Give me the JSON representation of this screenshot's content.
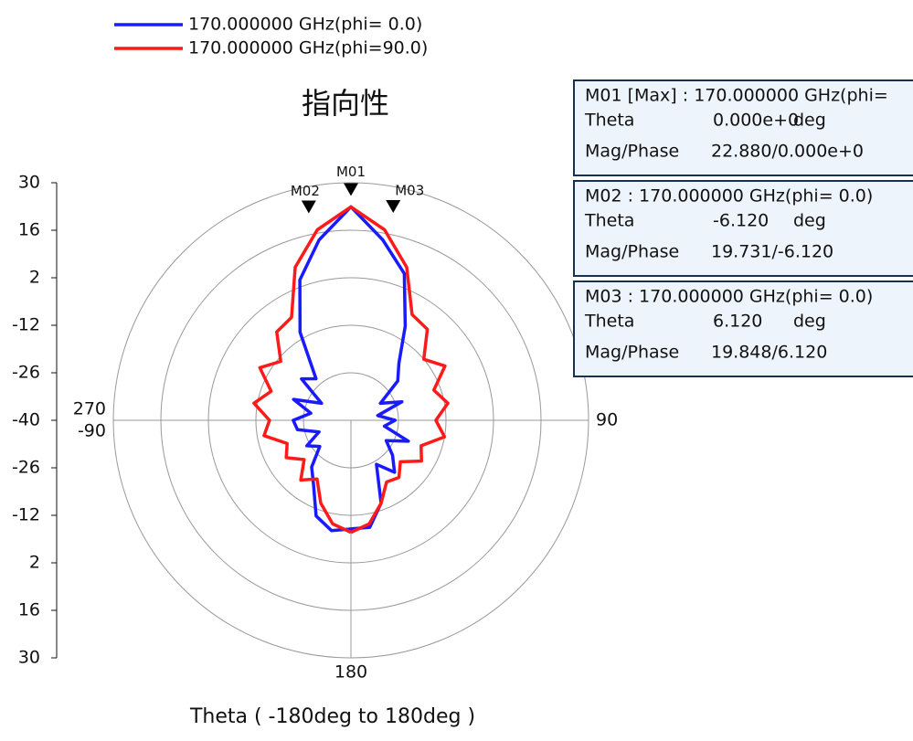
{
  "chart_data": {
    "type": "polar",
    "title": "指向性",
    "x_label": "Theta ( -180deg to 180deg )",
    "rlim": [
      -40,
      30
    ],
    "rticks": [
      -40,
      -26,
      -12,
      2,
      16,
      30
    ],
    "angle_ticks": [
      90,
      180,
      270,
      -90
    ],
    "theta": [
      -180,
      -170,
      -160,
      -150,
      -140,
      -130,
      -120,
      -110,
      -100,
      -90,
      -80,
      -70,
      -60,
      -50,
      -40,
      -30,
      -20,
      -10,
      0,
      10,
      20,
      30,
      40,
      50,
      60,
      70,
      80,
      90,
      100,
      110,
      120,
      130,
      140,
      150,
      160,
      170,
      180
    ],
    "series": [
      {
        "name": "170.000000 GHz(phi= 0.0)",
        "color": "#1a1aff",
        "values": [
          -8,
          -7,
          -10,
          -18,
          -22,
          -28,
          -25,
          -30,
          -24,
          -23,
          -28,
          -22,
          -30,
          -21,
          -24,
          -10,
          4,
          14,
          22.88,
          14,
          6,
          -8,
          -18,
          -22,
          -30,
          -24,
          -32,
          -27,
          -30,
          -22,
          -28,
          -24,
          -20,
          -25,
          -14,
          -8,
          -8
        ]
      },
      {
        "name": "170.000000 GHz(phi=90.0)",
        "color": "#ff1a1a",
        "values": [
          -7,
          -9,
          -14,
          -20,
          -17,
          -22,
          -18,
          -20,
          -14,
          -16,
          -11,
          -15,
          -9,
          -13,
          -6,
          -5,
          8,
          17,
          22.88,
          17,
          8,
          -4,
          -5,
          -12,
          -8,
          -14,
          -11,
          -15,
          -12,
          -18,
          -16,
          -21,
          -18,
          -19,
          -14,
          -9,
          -7
        ]
      }
    ],
    "markers": [
      {
        "name": "M01",
        "theta": 0,
        "value": 22.88,
        "header": "M01 [Max] : 170.000000 GHz(phi=",
        "theta_label": "0.000e+0",
        "mag_phase_label": "22.880/0.000e+0"
      },
      {
        "name": "M02",
        "theta": -6.12,
        "value": 19.731,
        "header": "M02 : 170.000000 GHz(phi= 0.0)",
        "theta_label": "-6.120",
        "mag_phase_label": "19.731/-6.120"
      },
      {
        "name": "M03",
        "theta": 6.12,
        "value": 19.848,
        "header": "M03 : 170.000000 GHz(phi= 0.0)",
        "theta_label": "6.120",
        "mag_phase_label": "19.848/6.120"
      }
    ],
    "box_labels": {
      "theta": "Theta",
      "unit": "deg",
      "mag_phase": "Mag/Phase"
    }
  }
}
